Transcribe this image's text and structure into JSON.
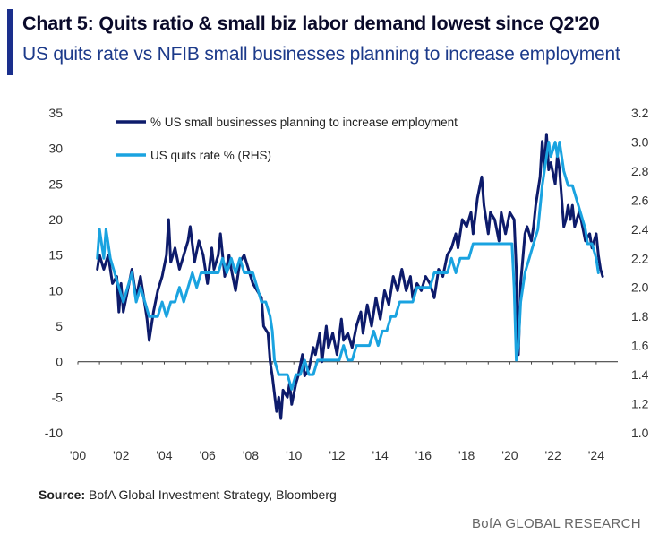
{
  "header": {
    "title": "Chart 5: Quits ratio & small biz labor demand lowest since Q2'20",
    "subtitle": "US quits rate vs NFIB small businesses planning to increase employment"
  },
  "footer": {
    "source_label": "Source:",
    "source_text": " BofA Global Investment Strategy, Bloomberg",
    "brand": "BofA GLOBAL RESEARCH"
  },
  "colors": {
    "accent_bar": "#1a2f8c",
    "series_nfib": "#0d1b6b",
    "series_quits": "#1aa3e0",
    "zero_line": "#444444"
  },
  "chart_data": {
    "type": "line",
    "title": "Chart 5: Quits ratio & small biz labor demand lowest since Q2'20",
    "subtitle": "US quits rate vs NFIB small businesses planning to increase employment",
    "x_ticks": [
      "'00",
      "'02",
      "'04",
      "'06",
      "'08",
      "'10",
      "'12",
      "'14",
      "'16",
      "'18",
      "'20",
      "'22",
      "'24"
    ],
    "x_tick_years": [
      2000,
      2002,
      2004,
      2006,
      2008,
      2010,
      2012,
      2014,
      2016,
      2018,
      2020,
      2022,
      2024
    ],
    "xlim": [
      2000,
      2025
    ],
    "ylim_left": [
      -10,
      35
    ],
    "yticks_left": [
      "35",
      "30",
      "25",
      "20",
      "15",
      "10",
      "5",
      "0",
      "-5",
      "-10"
    ],
    "ylim_right": [
      1.0,
      3.2
    ],
    "yticks_right": [
      "3.2",
      "3.0",
      "2.8",
      "2.6",
      "2.4",
      "2.2",
      "2.0",
      "1.8",
      "1.6",
      "1.4",
      "1.2",
      "1.0"
    ],
    "legend": [
      "% US small businesses planning to increase employment",
      "US quits rate % (RHS)"
    ],
    "series": [
      {
        "name": "% US small businesses planning to increase employment",
        "axis": "left",
        "points": [
          [
            2000.9,
            13
          ],
          [
            2001.0,
            15
          ],
          [
            2001.2,
            13
          ],
          [
            2001.4,
            15
          ],
          [
            2001.6,
            11
          ],
          [
            2001.8,
            12
          ],
          [
            2001.9,
            7
          ],
          [
            2002.0,
            11
          ],
          [
            2002.1,
            7
          ],
          [
            2002.3,
            10
          ],
          [
            2002.5,
            13
          ],
          [
            2002.7,
            9
          ],
          [
            2002.9,
            12
          ],
          [
            2003.1,
            8
          ],
          [
            2003.2,
            6
          ],
          [
            2003.3,
            3
          ],
          [
            2003.5,
            7
          ],
          [
            2003.7,
            10
          ],
          [
            2003.9,
            12
          ],
          [
            2004.1,
            15
          ],
          [
            2004.2,
            20
          ],
          [
            2004.3,
            14
          ],
          [
            2004.5,
            16
          ],
          [
            2004.7,
            13
          ],
          [
            2004.9,
            15
          ],
          [
            2005.1,
            17
          ],
          [
            2005.2,
            19
          ],
          [
            2005.4,
            14
          ],
          [
            2005.6,
            17
          ],
          [
            2005.8,
            15
          ],
          [
            2006.0,
            11
          ],
          [
            2006.2,
            16
          ],
          [
            2006.3,
            13
          ],
          [
            2006.5,
            15
          ],
          [
            2006.6,
            18
          ],
          [
            2006.8,
            12
          ],
          [
            2007.0,
            15
          ],
          [
            2007.1,
            13
          ],
          [
            2007.3,
            10
          ],
          [
            2007.5,
            14
          ],
          [
            2007.7,
            15
          ],
          [
            2007.9,
            13
          ],
          [
            2008.1,
            11
          ],
          [
            2008.3,
            10
          ],
          [
            2008.5,
            9
          ],
          [
            2008.6,
            5
          ],
          [
            2008.8,
            4
          ],
          [
            2008.9,
            0
          ],
          [
            2009.0,
            -2
          ],
          [
            2009.2,
            -7
          ],
          [
            2009.3,
            -5
          ],
          [
            2009.4,
            -8
          ],
          [
            2009.5,
            -4
          ],
          [
            2009.7,
            -5
          ],
          [
            2009.8,
            -3
          ],
          [
            2009.9,
            -6
          ],
          [
            2010.1,
            -3
          ],
          [
            2010.2,
            -2
          ],
          [
            2010.4,
            1
          ],
          [
            2010.5,
            -2
          ],
          [
            2010.7,
            -1
          ],
          [
            2010.9,
            2
          ],
          [
            2011.0,
            1
          ],
          [
            2011.2,
            4
          ],
          [
            2011.3,
            0
          ],
          [
            2011.5,
            5
          ],
          [
            2011.6,
            2
          ],
          [
            2011.8,
            4
          ],
          [
            2012.0,
            1
          ],
          [
            2012.2,
            6
          ],
          [
            2012.3,
            3
          ],
          [
            2012.5,
            4
          ],
          [
            2012.7,
            2
          ],
          [
            2012.9,
            5
          ],
          [
            2013.1,
            7
          ],
          [
            2013.2,
            4
          ],
          [
            2013.4,
            8
          ],
          [
            2013.6,
            5
          ],
          [
            2013.8,
            9
          ],
          [
            2014.0,
            6
          ],
          [
            2014.2,
            10
          ],
          [
            2014.4,
            8
          ],
          [
            2014.6,
            12
          ],
          [
            2014.8,
            10
          ],
          [
            2015.0,
            13
          ],
          [
            2015.2,
            10
          ],
          [
            2015.4,
            12
          ],
          [
            2015.5,
            9
          ],
          [
            2015.7,
            11
          ],
          [
            2015.9,
            10
          ],
          [
            2016.1,
            12
          ],
          [
            2016.3,
            11
          ],
          [
            2016.5,
            9
          ],
          [
            2016.7,
            13
          ],
          [
            2016.9,
            12
          ],
          [
            2017.1,
            15
          ],
          [
            2017.3,
            16
          ],
          [
            2017.5,
            18
          ],
          [
            2017.6,
            16
          ],
          [
            2017.8,
            20
          ],
          [
            2018.0,
            19
          ],
          [
            2018.2,
            21
          ],
          [
            2018.3,
            18
          ],
          [
            2018.5,
            23
          ],
          [
            2018.7,
            26
          ],
          [
            2018.8,
            22
          ],
          [
            2019.0,
            18
          ],
          [
            2019.1,
            21
          ],
          [
            2019.3,
            20
          ],
          [
            2019.5,
            17
          ],
          [
            2019.6,
            21
          ],
          [
            2019.8,
            18
          ],
          [
            2020.0,
            21
          ],
          [
            2020.2,
            20
          ],
          [
            2020.3,
            13
          ],
          [
            2020.4,
            1
          ],
          [
            2020.5,
            11
          ],
          [
            2020.7,
            18
          ],
          [
            2020.8,
            19
          ],
          [
            2021.0,
            17
          ],
          [
            2021.1,
            19
          ],
          [
            2021.2,
            22
          ],
          [
            2021.4,
            26
          ],
          [
            2021.5,
            31
          ],
          [
            2021.6,
            27
          ],
          [
            2021.7,
            32
          ],
          [
            2021.8,
            27
          ],
          [
            2021.9,
            28
          ],
          [
            2022.1,
            25
          ],
          [
            2022.2,
            29
          ],
          [
            2022.3,
            27
          ],
          [
            2022.4,
            23
          ],
          [
            2022.5,
            19
          ],
          [
            2022.6,
            20
          ],
          [
            2022.7,
            22
          ],
          [
            2022.8,
            20
          ],
          [
            2022.9,
            22
          ],
          [
            2023.0,
            19
          ],
          [
            2023.2,
            21
          ],
          [
            2023.3,
            20
          ],
          [
            2023.5,
            17
          ],
          [
            2023.7,
            18
          ],
          [
            2023.8,
            16
          ],
          [
            2024.0,
            18
          ],
          [
            2024.1,
            15
          ],
          [
            2024.2,
            13
          ],
          [
            2024.3,
            12
          ]
        ]
      },
      {
        "name": "US quits rate % (RHS)",
        "axis": "right",
        "points": [
          [
            2000.9,
            2.2
          ],
          [
            2001.0,
            2.4
          ],
          [
            2001.2,
            2.2
          ],
          [
            2001.3,
            2.4
          ],
          [
            2001.5,
            2.2
          ],
          [
            2001.7,
            2.1
          ],
          [
            2001.9,
            2.0
          ],
          [
            2002.1,
            1.9
          ],
          [
            2002.3,
            2.0
          ],
          [
            2002.5,
            2.1
          ],
          [
            2002.7,
            1.9
          ],
          [
            2002.9,
            2.0
          ],
          [
            2003.1,
            1.9
          ],
          [
            2003.3,
            1.8
          ],
          [
            2003.5,
            1.8
          ],
          [
            2003.7,
            1.8
          ],
          [
            2003.9,
            1.9
          ],
          [
            2004.1,
            1.8
          ],
          [
            2004.3,
            1.9
          ],
          [
            2004.5,
            1.9
          ],
          [
            2004.7,
            2.0
          ],
          [
            2004.9,
            1.9
          ],
          [
            2005.1,
            2.0
          ],
          [
            2005.3,
            2.1
          ],
          [
            2005.5,
            2.0
          ],
          [
            2005.7,
            2.1
          ],
          [
            2005.9,
            2.1
          ],
          [
            2006.1,
            2.1
          ],
          [
            2006.3,
            2.1
          ],
          [
            2006.5,
            2.1
          ],
          [
            2006.7,
            2.2
          ],
          [
            2006.9,
            2.1
          ],
          [
            2007.1,
            2.2
          ],
          [
            2007.3,
            2.1
          ],
          [
            2007.5,
            2.2
          ],
          [
            2007.7,
            2.1
          ],
          [
            2007.9,
            2.1
          ],
          [
            2008.1,
            2.1
          ],
          [
            2008.3,
            2.0
          ],
          [
            2008.5,
            1.9
          ],
          [
            2008.7,
            1.9
          ],
          [
            2008.9,
            1.8
          ],
          [
            2009.0,
            1.7
          ],
          [
            2009.1,
            1.5
          ],
          [
            2009.3,
            1.4
          ],
          [
            2009.5,
            1.4
          ],
          [
            2009.7,
            1.4
          ],
          [
            2009.9,
            1.3
          ],
          [
            2010.1,
            1.4
          ],
          [
            2010.3,
            1.4
          ],
          [
            2010.5,
            1.5
          ],
          [
            2010.7,
            1.4
          ],
          [
            2010.9,
            1.4
          ],
          [
            2011.1,
            1.5
          ],
          [
            2011.3,
            1.5
          ],
          [
            2011.5,
            1.5
          ],
          [
            2011.7,
            1.5
          ],
          [
            2011.9,
            1.5
          ],
          [
            2012.1,
            1.5
          ],
          [
            2012.3,
            1.6
          ],
          [
            2012.5,
            1.5
          ],
          [
            2012.7,
            1.5
          ],
          [
            2012.9,
            1.6
          ],
          [
            2013.1,
            1.6
          ],
          [
            2013.3,
            1.6
          ],
          [
            2013.5,
            1.6
          ],
          [
            2013.7,
            1.7
          ],
          [
            2013.9,
            1.6
          ],
          [
            2014.1,
            1.7
          ],
          [
            2014.3,
            1.7
          ],
          [
            2014.5,
            1.8
          ],
          [
            2014.7,
            1.8
          ],
          [
            2014.9,
            1.9
          ],
          [
            2015.1,
            1.9
          ],
          [
            2015.3,
            1.9
          ],
          [
            2015.5,
            1.9
          ],
          [
            2015.7,
            2.0
          ],
          [
            2015.9,
            2.0
          ],
          [
            2016.1,
            2.0
          ],
          [
            2016.3,
            2.0
          ],
          [
            2016.5,
            2.1
          ],
          [
            2016.7,
            2.1
          ],
          [
            2016.9,
            2.1
          ],
          [
            2017.1,
            2.1
          ],
          [
            2017.3,
            2.2
          ],
          [
            2017.5,
            2.1
          ],
          [
            2017.7,
            2.2
          ],
          [
            2017.9,
            2.2
          ],
          [
            2018.1,
            2.2
          ],
          [
            2018.3,
            2.3
          ],
          [
            2018.5,
            2.3
          ],
          [
            2018.7,
            2.3
          ],
          [
            2018.9,
            2.3
          ],
          [
            2019.1,
            2.3
          ],
          [
            2019.3,
            2.3
          ],
          [
            2019.5,
            2.3
          ],
          [
            2019.7,
            2.3
          ],
          [
            2019.9,
            2.3
          ],
          [
            2020.1,
            2.3
          ],
          [
            2020.2,
            2.0
          ],
          [
            2020.3,
            1.5
          ],
          [
            2020.4,
            1.6
          ],
          [
            2020.5,
            1.9
          ],
          [
            2020.7,
            2.1
          ],
          [
            2020.9,
            2.2
          ],
          [
            2021.1,
            2.3
          ],
          [
            2021.3,
            2.4
          ],
          [
            2021.5,
            2.7
          ],
          [
            2021.7,
            2.9
          ],
          [
            2021.8,
            3.0
          ],
          [
            2021.9,
            2.9
          ],
          [
            2022.1,
            3.0
          ],
          [
            2022.2,
            2.9
          ],
          [
            2022.3,
            3.0
          ],
          [
            2022.5,
            2.8
          ],
          [
            2022.7,
            2.7
          ],
          [
            2022.9,
            2.7
          ],
          [
            2023.1,
            2.6
          ],
          [
            2023.3,
            2.5
          ],
          [
            2023.5,
            2.4
          ],
          [
            2023.6,
            2.3
          ],
          [
            2023.8,
            2.3
          ],
          [
            2024.0,
            2.2
          ],
          [
            2024.1,
            2.1
          ]
        ]
      }
    ]
  }
}
